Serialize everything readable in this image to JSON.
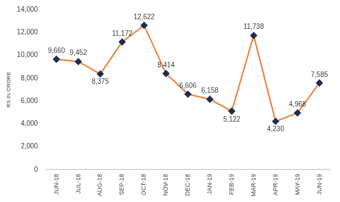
{
  "chart_data": {
    "type": "line",
    "y_label": "RS IN CRORE",
    "categories": [
      "JUN-18",
      "JUL-18",
      "AUG-18",
      "SEP-18",
      "OCT-18",
      "NOV-18",
      "DEC-18",
      "JAN-19",
      "FEB-19",
      "MAR-19",
      "APR-19",
      "MAY-19",
      "JUN-19"
    ],
    "series": [
      {
        "name": "RS IN CRORE",
        "color": "#ED7D31",
        "marker": "diamond",
        "values": [
          9660,
          9452,
          8375,
          11172,
          12622,
          8414,
          6606,
          6158,
          5122,
          11738,
          4230,
          4968,
          7585
        ],
        "value_labels": [
          "9,660",
          "9,452",
          "8,375",
          "11,172",
          "12,622",
          "8,414",
          "6,606",
          "6,158",
          "5,122",
          "11,738",
          "4,230",
          "4,968",
          "7,585"
        ]
      }
    ],
    "ylim": [
      0,
      14000
    ],
    "yticks": [
      0,
      {
        "value": 2000,
        "label": "2,000"
      },
      {
        "value": 4000,
        "label": "4,000"
      },
      {
        "value": 6000,
        "label": "6,000"
      },
      {
        "value": 8000,
        "label": "8,000"
      },
      {
        "value": 10000,
        "label": "10,000"
      },
      {
        "value": 12000,
        "label": "12,000"
      },
      {
        "value": 14000,
        "label": "14,000"
      }
    ],
    "grid": false,
    "data_labels": true
  }
}
